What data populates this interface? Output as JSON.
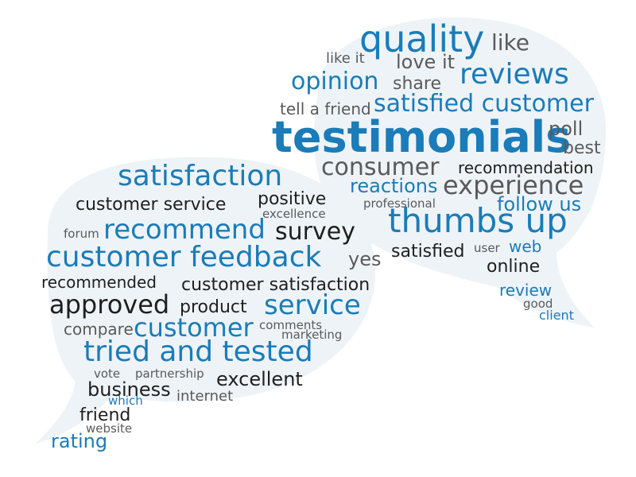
{
  "colors": {
    "blue": "#1a7cb8",
    "dark": "#1f1f1f",
    "gray": "#5a5a5a",
    "lightblue": "#3b97cf",
    "bubble": "#eef3f7"
  },
  "words": [
    {
      "text": "quality",
      "color": "blue"
    },
    {
      "text": "like",
      "color": "gray"
    },
    {
      "text": "like it",
      "color": "gray"
    },
    {
      "text": "love it",
      "color": "gray"
    },
    {
      "text": "reviews",
      "color": "blue"
    },
    {
      "text": "opinion",
      "color": "blue"
    },
    {
      "text": "share",
      "color": "gray"
    },
    {
      "text": "tell a friend",
      "color": "gray"
    },
    {
      "text": "satisfied customer",
      "color": "blue"
    },
    {
      "text": "testimonials",
      "color": "blue"
    },
    {
      "text": "poll",
      "color": "gray"
    },
    {
      "text": "best",
      "color": "gray"
    },
    {
      "text": "consumer",
      "color": "gray"
    },
    {
      "text": "recommendation",
      "color": "dark"
    },
    {
      "text": "reactions",
      "color": "blue"
    },
    {
      "text": "experience",
      "color": "gray"
    },
    {
      "text": "professional",
      "color": "gray"
    },
    {
      "text": "follow us",
      "color": "blue"
    },
    {
      "text": "thumbs up",
      "color": "blue"
    },
    {
      "text": "satisfied",
      "color": "dark"
    },
    {
      "text": "user",
      "color": "gray"
    },
    {
      "text": "web",
      "color": "blue"
    },
    {
      "text": "online",
      "color": "dark"
    },
    {
      "text": "review",
      "color": "blue"
    },
    {
      "text": "good",
      "color": "gray"
    },
    {
      "text": "client",
      "color": "blue"
    },
    {
      "text": "satisfaction",
      "color": "blue"
    },
    {
      "text": "customer service",
      "color": "dark"
    },
    {
      "text": "positive",
      "color": "dark"
    },
    {
      "text": "excellence",
      "color": "gray"
    },
    {
      "text": "forum",
      "color": "gray"
    },
    {
      "text": "recommend",
      "color": "blue"
    },
    {
      "text": "survey",
      "color": "dark"
    },
    {
      "text": "customer feedback",
      "color": "blue"
    },
    {
      "text": "yes",
      "color": "gray"
    },
    {
      "text": "recommended",
      "color": "dark"
    },
    {
      "text": "customer satisfaction",
      "color": "dark"
    },
    {
      "text": "approved",
      "color": "dark"
    },
    {
      "text": "product",
      "color": "dark"
    },
    {
      "text": "service",
      "color": "blue"
    },
    {
      "text": "compare",
      "color": "gray"
    },
    {
      "text": "customer",
      "color": "blue"
    },
    {
      "text": "comments",
      "color": "gray"
    },
    {
      "text": "marketing",
      "color": "gray"
    },
    {
      "text": "tried and tested",
      "color": "blue"
    },
    {
      "text": "vote",
      "color": "gray"
    },
    {
      "text": "partnership",
      "color": "gray"
    },
    {
      "text": "excellent",
      "color": "dark"
    },
    {
      "text": "business",
      "color": "dark"
    },
    {
      "text": "which",
      "color": "blue"
    },
    {
      "text": "internet",
      "color": "gray"
    },
    {
      "text": "friend",
      "color": "dark"
    },
    {
      "text": "website",
      "color": "gray"
    },
    {
      "text": "rating",
      "color": "blue"
    }
  ]
}
